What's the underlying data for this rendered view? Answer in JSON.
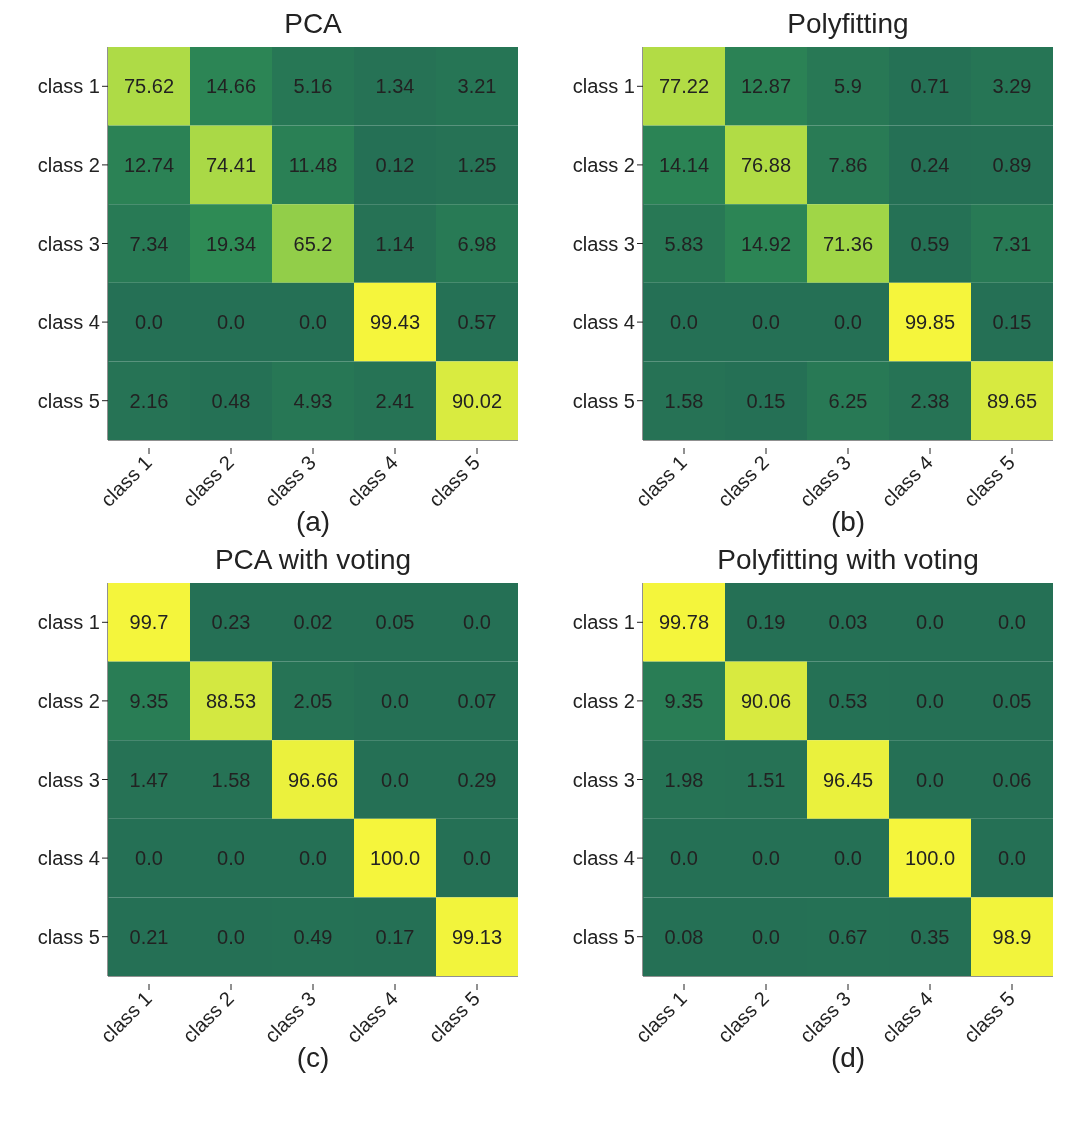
{
  "chart_data": [
    {
      "type": "heatmap",
      "title": "PCA",
      "categories": [
        "class 1",
        "class 2",
        "class 3",
        "class 4",
        "class 5"
      ],
      "y_categories": [
        "class 1",
        "class 2",
        "class 3",
        "class 4",
        "class 5"
      ],
      "cells": [
        [
          75.62,
          14.66,
          5.16,
          1.34,
          3.21
        ],
        [
          12.74,
          74.41,
          11.48,
          0.12,
          1.25
        ],
        [
          7.34,
          19.34,
          65.2,
          1.14,
          6.98
        ],
        [
          0.0,
          0.0,
          0.0,
          99.43,
          0.57
        ],
        [
          2.16,
          0.48,
          4.93,
          2.41,
          90.02
        ]
      ],
      "cell_labels": [
        [
          "75.62",
          "14.66",
          "5.16",
          "1.34",
          "3.21"
        ],
        [
          "12.74",
          "74.41",
          "11.48",
          "0.12",
          "1.25"
        ],
        [
          "7.34",
          "19.34",
          "65.2",
          "1.14",
          "6.98"
        ],
        [
          "0.0",
          "0.0",
          "0.0",
          "99.43",
          "0.57"
        ],
        [
          "2.16",
          "0.48",
          "4.93",
          "2.41",
          "90.02"
        ]
      ],
      "annotations": [
        "(a)"
      ]
    },
    {
      "type": "heatmap",
      "title": "Polyfitting",
      "categories": [
        "class 1",
        "class 2",
        "class 3",
        "class 4",
        "class 5"
      ],
      "y_categories": [
        "class 1",
        "class 2",
        "class 3",
        "class 4",
        "class 5"
      ],
      "cells": [
        [
          77.22,
          12.87,
          5.9,
          0.71,
          3.29
        ],
        [
          14.14,
          76.88,
          7.86,
          0.24,
          0.89
        ],
        [
          5.83,
          14.92,
          71.36,
          0.59,
          7.31
        ],
        [
          0.0,
          0.0,
          0.0,
          99.85,
          0.15
        ],
        [
          1.58,
          0.15,
          6.25,
          2.38,
          89.65
        ]
      ],
      "cell_labels": [
        [
          "77.22",
          "12.87",
          "5.9",
          "0.71",
          "3.29"
        ],
        [
          "14.14",
          "76.88",
          "7.86",
          "0.24",
          "0.89"
        ],
        [
          "5.83",
          "14.92",
          "71.36",
          "0.59",
          "7.31"
        ],
        [
          "0.0",
          "0.0",
          "0.0",
          "99.85",
          "0.15"
        ],
        [
          "1.58",
          "0.15",
          "6.25",
          "2.38",
          "89.65"
        ]
      ],
      "annotations": [
        "(b)"
      ]
    },
    {
      "type": "heatmap",
      "title": "PCA with voting",
      "categories": [
        "class 1",
        "class 2",
        "class 3",
        "class 4",
        "class 5"
      ],
      "y_categories": [
        "class 1",
        "class 2",
        "class 3",
        "class 4",
        "class 5"
      ],
      "cells": [
        [
          99.7,
          0.23,
          0.02,
          0.05,
          0.0
        ],
        [
          9.35,
          88.53,
          2.05,
          0.0,
          0.07
        ],
        [
          1.47,
          1.58,
          96.66,
          0.0,
          0.29
        ],
        [
          0.0,
          0.0,
          0.0,
          100.0,
          0.0
        ],
        [
          0.21,
          0.0,
          0.49,
          0.17,
          99.13
        ]
      ],
      "cell_labels": [
        [
          "99.7",
          "0.23",
          "0.02",
          "0.05",
          "0.0"
        ],
        [
          "9.35",
          "88.53",
          "2.05",
          "0.0",
          "0.07"
        ],
        [
          "1.47",
          "1.58",
          "96.66",
          "0.0",
          "0.29"
        ],
        [
          "0.0",
          "0.0",
          "0.0",
          "100.0",
          "0.0"
        ],
        [
          "0.21",
          "0.0",
          "0.49",
          "0.17",
          "99.13"
        ]
      ],
      "annotations": [
        "(c)"
      ]
    },
    {
      "type": "heatmap",
      "title": "Polyfitting with voting",
      "categories": [
        "class 1",
        "class 2",
        "class 3",
        "class 4",
        "class 5"
      ],
      "y_categories": [
        "class 1",
        "class 2",
        "class 3",
        "class 4",
        "class 5"
      ],
      "cells": [
        [
          99.78,
          0.19,
          0.03,
          0.0,
          0.0
        ],
        [
          9.35,
          90.06,
          0.53,
          0.0,
          0.05
        ],
        [
          1.98,
          1.51,
          96.45,
          0.0,
          0.06
        ],
        [
          0.0,
          0.0,
          0.0,
          100.0,
          0.0
        ],
        [
          0.08,
          0.0,
          0.67,
          0.35,
          98.9
        ]
      ],
      "cell_labels": [
        [
          "99.78",
          "0.19",
          "0.03",
          "0.0",
          "0.0"
        ],
        [
          "9.35",
          "90.06",
          "0.53",
          "0.0",
          "0.05"
        ],
        [
          "1.98",
          "1.51",
          "96.45",
          "0.0",
          "0.06"
        ],
        [
          "0.0",
          "0.0",
          "0.0",
          "100.0",
          "0.0"
        ],
        [
          "0.08",
          "0.0",
          "0.67",
          "0.35",
          "98.9"
        ]
      ],
      "annotations": [
        "(d)"
      ]
    }
  ]
}
